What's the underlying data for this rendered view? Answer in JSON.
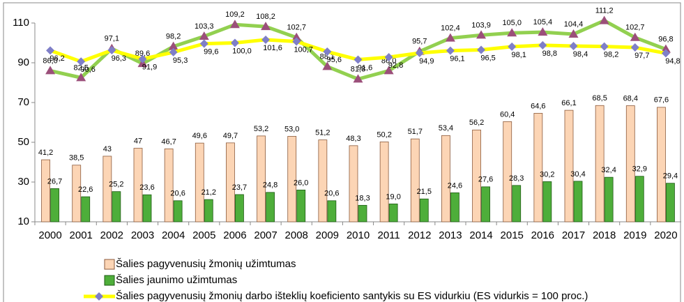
{
  "chart_data": {
    "type": "bar",
    "categories": [
      "2000",
      "2001",
      "2002",
      "2003",
      "2004",
      "2005",
      "2006",
      "2007",
      "2008",
      "2009",
      "2010",
      "2011",
      "2012",
      "2013",
      "2014",
      "2015",
      "2016",
      "2017",
      "2018",
      "2019",
      "2020"
    ],
    "ylim": [
      10,
      110
    ],
    "yticks": [
      10,
      30,
      50,
      70,
      90,
      110
    ],
    "grid": false,
    "series": [
      {
        "name": "Šalies pagyvenusių žmonių užimtumas",
        "kind": "bar",
        "color": "#fcd5b5",
        "stroke": "#8b5a3c",
        "values": [
          41.2,
          38.5,
          43,
          47,
          46.7,
          49.6,
          49.7,
          53.2,
          53.0,
          51.2,
          48.3,
          50.2,
          51.7,
          53.4,
          56.2,
          60.4,
          64.6,
          66.1,
          68.5,
          68.4,
          67.6
        ],
        "value_labels": [
          "41,2",
          "38,5",
          "43",
          "47",
          "46,7",
          "49,6",
          "49,7",
          "53,2",
          "53,0",
          "51,2",
          "48,3",
          "50,2",
          "51,7",
          "53,4",
          "56,2",
          "60,4",
          "64,6",
          "66,1",
          "68,5",
          "68,4",
          "67,6"
        ]
      },
      {
        "name": "Šalies jaunimo užimtumas",
        "kind": "bar",
        "color": "#4eae3a",
        "stroke": "#1e5a14",
        "values": [
          26.7,
          22.6,
          25.2,
          23.6,
          20.6,
          21.2,
          23.7,
          24.8,
          26.0,
          20.6,
          18.3,
          19.0,
          21.5,
          24.6,
          27.6,
          28.3,
          30.2,
          30.4,
          32.4,
          32.9,
          29.4
        ],
        "value_labels": [
          "26,7",
          "22,6",
          "25,2",
          "23,6",
          "20,6",
          "21,2",
          "23,7",
          "24,8",
          "26,0",
          "20,6",
          "18,3",
          "19,0",
          "21,5",
          "24,6",
          "27,6",
          "28,3",
          "30,2",
          "30,4",
          "32,4",
          "32,9",
          "29,4"
        ]
      },
      {
        "kind": "line",
        "color": "#92d050",
        "marker": "triangle",
        "marker_color": "#9b4f7a",
        "values": [
          86.0,
          82.5,
          97.1,
          89.6,
          98.2,
          103.3,
          109.2,
          108.2,
          102.7,
          88.1,
          81.8,
          86.0,
          95.7,
          102.4,
          103.9,
          105.0,
          105.4,
          104.4,
          111.2,
          102.7,
          96.8
        ],
        "value_labels": [
          "86,0",
          "82,5",
          "97,1",
          "89,6",
          "98,2",
          "103,3",
          "109,2",
          "108,2",
          "102,7",
          "88,1",
          "81,8",
          "86,0",
          "95,7",
          "102,4",
          "103,9",
          "105,0",
          "105,4",
          "104,4",
          "111,2",
          "102,7",
          "96,8"
        ]
      },
      {
        "name": "Šalies pagyvenusių žmonių darbo išteklių koeficiento santykis su ES vidurkiu (ES vidurkis = 100 proc.)",
        "kind": "line",
        "color": "#ffff00",
        "marker": "diamond",
        "marker_color": "#7f7fc8",
        "values": [
          96.2,
          90.6,
          96.3,
          91.9,
          95.3,
          99.6,
          100.0,
          101.6,
          100.7,
          95.6,
          91.6,
          92.8,
          94.9,
          96.1,
          96.5,
          98.1,
          98.8,
          98.4,
          98.2,
          97.7,
          94.8
        ],
        "value_labels": [
          "96,2",
          "90,6",
          "96,3",
          "91,9",
          "95,3",
          "99,6",
          "100,0",
          "101,6",
          "100,7",
          "95,6",
          "91,6",
          "92,8",
          "94,9",
          "96,1",
          "96,5",
          "98,1",
          "98,8",
          "98,4",
          "98,2",
          "97,7",
          "94,8"
        ]
      }
    ]
  }
}
